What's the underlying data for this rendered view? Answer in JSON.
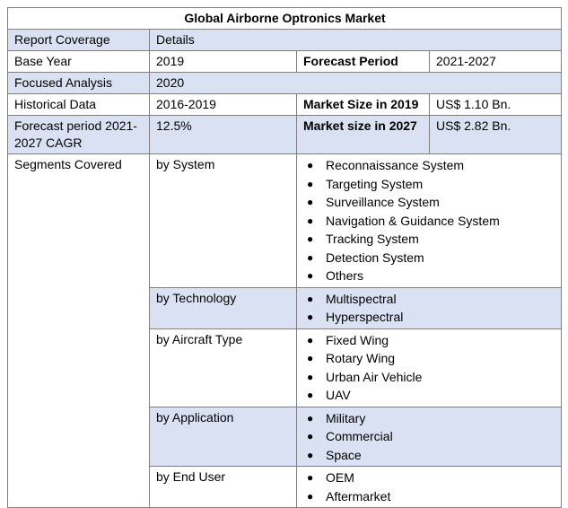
{
  "table": {
    "title": "Global Airborne Optronics Market",
    "header": {
      "coverage": "Report Coverage",
      "details": "Details"
    },
    "base_year": {
      "label": "Base Year",
      "value": "2019",
      "label2": "Forecast Period",
      "value2": "2021-2027"
    },
    "focused": {
      "label": "Focused Analysis",
      "value": "2020"
    },
    "historical": {
      "label": "Historical Data",
      "value": "2016-2019",
      "label2": "Market Size in 2019",
      "value2": "US$ 1.10 Bn."
    },
    "cagr": {
      "label": "Forecast period 2021-2027 CAGR",
      "value": "12.5%",
      "label2": "Market size in 2027",
      "value2": "US$ 2.82 Bn."
    },
    "segments_label": "Segments Covered",
    "segments": [
      {
        "name": "by System",
        "items": [
          "Reconnaissance System",
          "Targeting System",
          "Surveillance System",
          "Navigation & Guidance System",
          "Tracking System",
          "Detection System",
          "Others"
        ]
      },
      {
        "name": "by Technology",
        "items": [
          "Multispectral",
          "Hyperspectral"
        ]
      },
      {
        "name": "by Aircraft Type",
        "items": [
          "Fixed Wing",
          "Rotary Wing",
          "Urban Air Vehicle",
          "UAV"
        ]
      },
      {
        "name": "by Application",
        "items": [
          "Military",
          "Commercial",
          "Space"
        ]
      },
      {
        "name": "by End User",
        "items": [
          "OEM",
          "Aftermarket"
        ]
      }
    ]
  },
  "bullet_glyph": "●",
  "colors": {
    "shade": "#d9e1f2",
    "border": "#7f7f7f"
  }
}
